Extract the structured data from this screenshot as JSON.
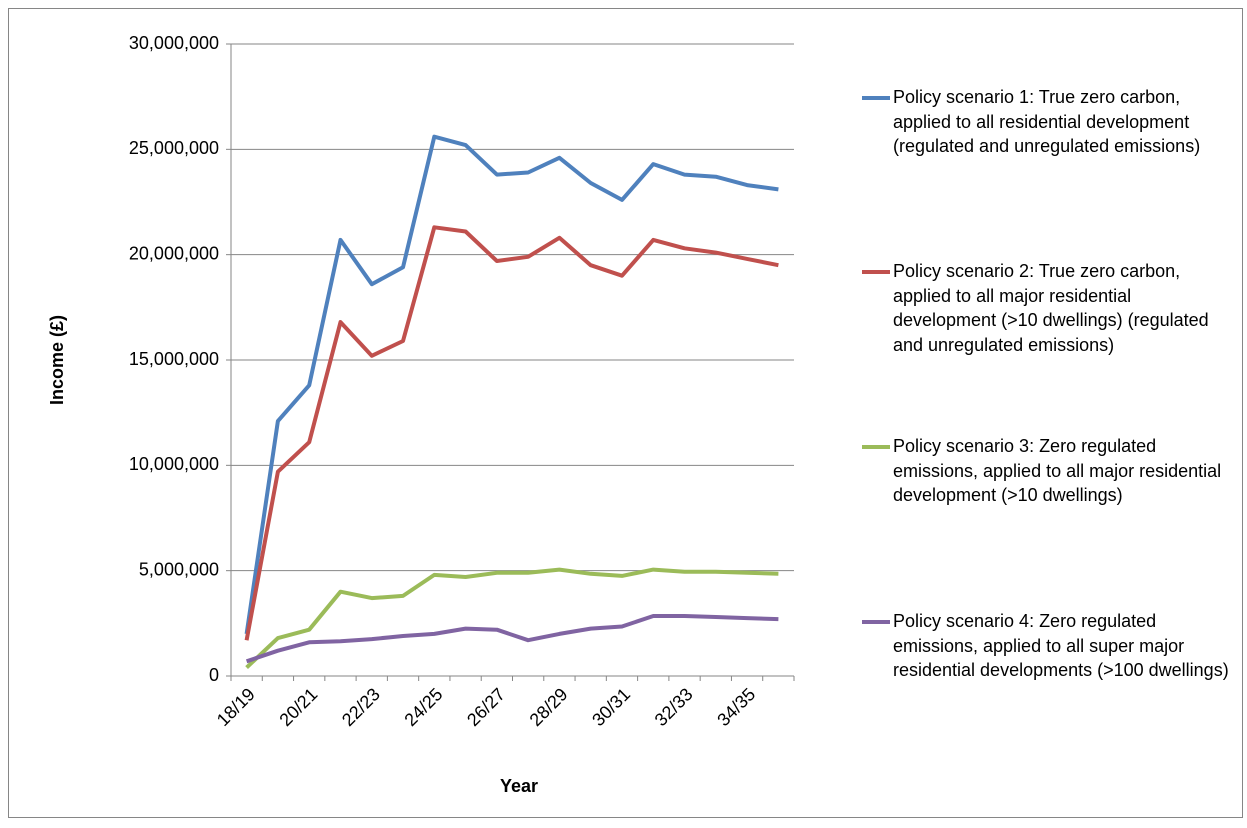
{
  "chart_data": {
    "type": "line",
    "x_label": "Year",
    "y_label": "Income (£)",
    "categories": [
      "18/19",
      null,
      "20/21",
      null,
      "22/23",
      null,
      "24/25",
      null,
      "26/27",
      null,
      "28/29",
      null,
      "30/31",
      null,
      "32/33",
      null,
      "34/35",
      null
    ],
    "series": [
      {
        "name": "Policy scenario 1: True zero carbon, applied to all residential development (regulated and unregulated emissions)",
        "color": "#4f81bd",
        "values": [
          2000000,
          12100000,
          13800000,
          20700000,
          18600000,
          19400000,
          25600000,
          25200000,
          23800000,
          23900000,
          24600000,
          23400000,
          22600000,
          24300000,
          23800000,
          23700000,
          23300000,
          23100000
        ]
      },
      {
        "name": "Policy scenario 2: True zero carbon, applied to all major residential development (>10 dwellings) (regulated and unregulated emissions)",
        "color": "#c0504d",
        "values": [
          1700000,
          9700000,
          11100000,
          16800000,
          15200000,
          15900000,
          21300000,
          21100000,
          19700000,
          19900000,
          20800000,
          19500000,
          19000000,
          20700000,
          20300000,
          20100000,
          19800000,
          19500000
        ]
      },
      {
        "name": "Policy scenario 3: Zero regulated emissions, applied to all major residential development (>10 dwellings)",
        "color": "#9bbb59",
        "values": [
          400000,
          1800000,
          2200000,
          4000000,
          3700000,
          3800000,
          4800000,
          4700000,
          4900000,
          4900000,
          5050000,
          4850000,
          4750000,
          5050000,
          4950000,
          4950000,
          4900000,
          4850000
        ]
      },
      {
        "name": "Policy scenario 4: Zero regulated emissions, applied to all super major residential developments (>100 dwellings)",
        "color": "#8064a2",
        "values": [
          700000,
          1200000,
          1600000,
          1650000,
          1750000,
          1900000,
          2000000,
          2250000,
          2200000,
          1700000,
          2000000,
          2250000,
          2350000,
          2850000,
          2850000,
          2800000,
          2750000,
          2700000
        ]
      }
    ],
    "ylim": [
      0,
      30000000
    ],
    "yticks": [
      0,
      {
        "value": 5000000,
        "label": "5,000,000"
      },
      {
        "value": 10000000,
        "label": "10,000,000"
      },
      {
        "value": 15000000,
        "label": "15,000,000"
      },
      {
        "value": 20000000,
        "label": "20,000,000"
      },
      {
        "value": 25000000,
        "label": "25,000,000"
      },
      {
        "value": 30000000,
        "label": "30,000,000"
      }
    ],
    "grid": true,
    "legend": "right"
  }
}
